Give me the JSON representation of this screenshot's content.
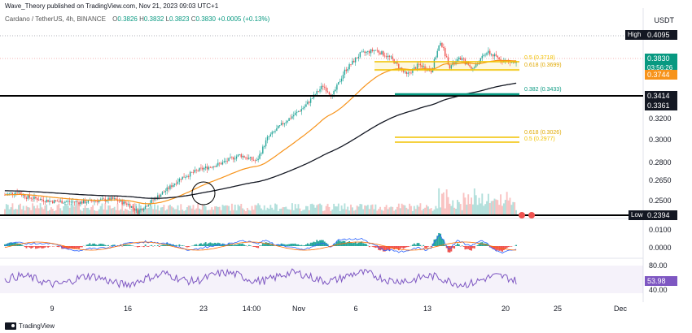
{
  "header": {
    "publisher": "Wave_Theory published on TradingView.com, Nov 21, 2023 09:03 UTC+1",
    "symbol": "Cardano / TetherUS, 4h, BINANCE",
    "open_label": "O",
    "open": "0.3826",
    "high_label": "H",
    "high": "0.3832",
    "low_label": "L",
    "low": "0.3823",
    "close_label": "C",
    "close": "0.3830",
    "change": "+0.0005 (+0.13%)",
    "currency": "USDT"
  },
  "price_axis": {
    "ticks": [
      "0.3200",
      "0.3000",
      "0.2800",
      "0.2650",
      "0.2500"
    ],
    "macd_ticks": [
      "0.0100",
      "0.0000"
    ],
    "rsi_ticks": [
      "80.00",
      "40.00"
    ]
  },
  "tags": {
    "high_label": "High",
    "high_value": "0.4095",
    "last_price": "0.3830",
    "countdown": "03:56:26",
    "ema50": "0.3744",
    "level1": "0.3414",
    "level2": "0.3361",
    "low_label": "Low",
    "low_value": "0.2394",
    "rsi": "53.98"
  },
  "fib_labels": {
    "fib_top_05": "0.5 (0.3718)",
    "fib_top_0618": "0.618 (0.3699)",
    "fib_0382": "0.382 (0.3433)",
    "fib_low_0618": "0.618 (0.3026)",
    "fib_low_05": "0.5 (0.2977)"
  },
  "time_axis": [
    "9",
    "16",
    "23",
    "14:00",
    "Nov",
    "6",
    "13",
    "20",
    "25",
    "Dec"
  ],
  "footer": {
    "brand": "TradingView"
  },
  "colors": {
    "up": "#26a69a",
    "down": "#ef5350",
    "ema50": "#f7931a",
    "ema200": "#131722",
    "fib": "#f2c200",
    "green": "#089981",
    "macd": "#2962ff",
    "signal": "#ff6d00",
    "rsi": "#7e57c2"
  }
}
